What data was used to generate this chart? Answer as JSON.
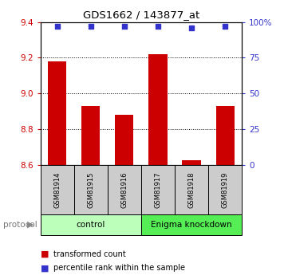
{
  "title": "GDS1662 / 143877_at",
  "samples": [
    "GSM81914",
    "GSM81915",
    "GSM81916",
    "GSM81917",
    "GSM81918",
    "GSM81919"
  ],
  "bar_values": [
    9.18,
    8.93,
    8.88,
    9.22,
    8.625,
    8.93
  ],
  "percentile_values": [
    97,
    97,
    97,
    97,
    96,
    97
  ],
  "ylim_left": [
    8.6,
    9.4
  ],
  "ylim_right": [
    0,
    100
  ],
  "yticks_left": [
    8.6,
    8.8,
    9.0,
    9.2,
    9.4
  ],
  "yticks_right": [
    0,
    25,
    50,
    75,
    100
  ],
  "bar_color": "#cc0000",
  "dot_color": "#3333cc",
  "grid_color": "#000000",
  "groups": [
    {
      "label": "control",
      "indices": [
        0,
        1,
        2
      ],
      "color": "#bbffbb"
    },
    {
      "label": "Enigma knockdown",
      "indices": [
        3,
        4,
        5
      ],
      "color": "#55ee55"
    }
  ],
  "protocol_label": "protocol",
  "legend_bar_label": "transformed count",
  "legend_dot_label": "percentile rank within the sample",
  "bar_width": 0.55,
  "bg_color": "#ffffff",
  "tick_box_color": "#cccccc"
}
